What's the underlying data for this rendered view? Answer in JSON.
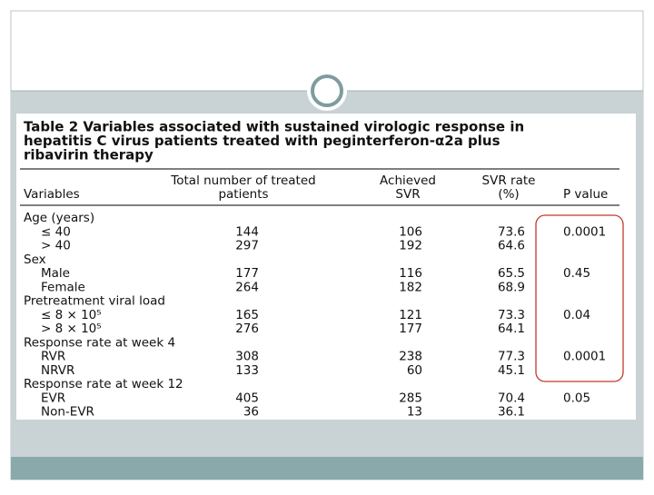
{
  "table": {
    "title_lines": [
      "Table 2  Variables associated with sustained virologic response in",
      "hepatitis C virus patients treated with peginterferon-α2a plus",
      "ribavirin therapy"
    ],
    "header": {
      "variables": [
        "Variables"
      ],
      "total": [
        "Total number of treated",
        "patients"
      ],
      "svr": [
        "Achieved",
        "SVR"
      ],
      "rate": [
        "SVR rate",
        "(%)"
      ],
      "p": [
        "P value"
      ]
    },
    "groups": [
      {
        "label": "Age (years)",
        "rows": [
          {
            "label": "≤ 40",
            "total": 144,
            "svr": 106,
            "rate": 73.6,
            "p": 0.0001
          },
          {
            "label": "> 40",
            "total": 297,
            "svr": 192,
            "rate": 64.6
          }
        ]
      },
      {
        "label": "Sex",
        "rows": [
          {
            "label": "Male",
            "total": 177,
            "svr": 116,
            "rate": 65.5,
            "p": 0.45
          },
          {
            "label": "Female",
            "total": 264,
            "svr": 182,
            "rate": 68.9
          }
        ]
      },
      {
        "label": "Pretreatment viral load",
        "rows": [
          {
            "label": "≤ 8 × 10⁵",
            "total": 165,
            "svr": 121,
            "rate": 73.3,
            "p": 0.04
          },
          {
            "label": "> 8 × 10⁵",
            "total": 276,
            "svr": 177,
            "rate": 64.1
          }
        ]
      },
      {
        "label": "Response rate at week 4",
        "rows": [
          {
            "label": "RVR",
            "total": 308,
            "svr": 238,
            "rate": 77.3,
            "p": 0.0001
          },
          {
            "label": "NRVR",
            "total": 133,
            "svr": 60,
            "rate": 45.1
          }
        ]
      },
      {
        "label": "Response rate at week 12",
        "rows": [
          {
            "label": "EVR",
            "total": 405,
            "svr": 285,
            "rate": 70.4,
            "p": 0.05
          },
          {
            "label": "Non-EVR",
            "total": 36,
            "svr": 13,
            "rate": 36.1
          }
        ]
      }
    ]
  }
}
